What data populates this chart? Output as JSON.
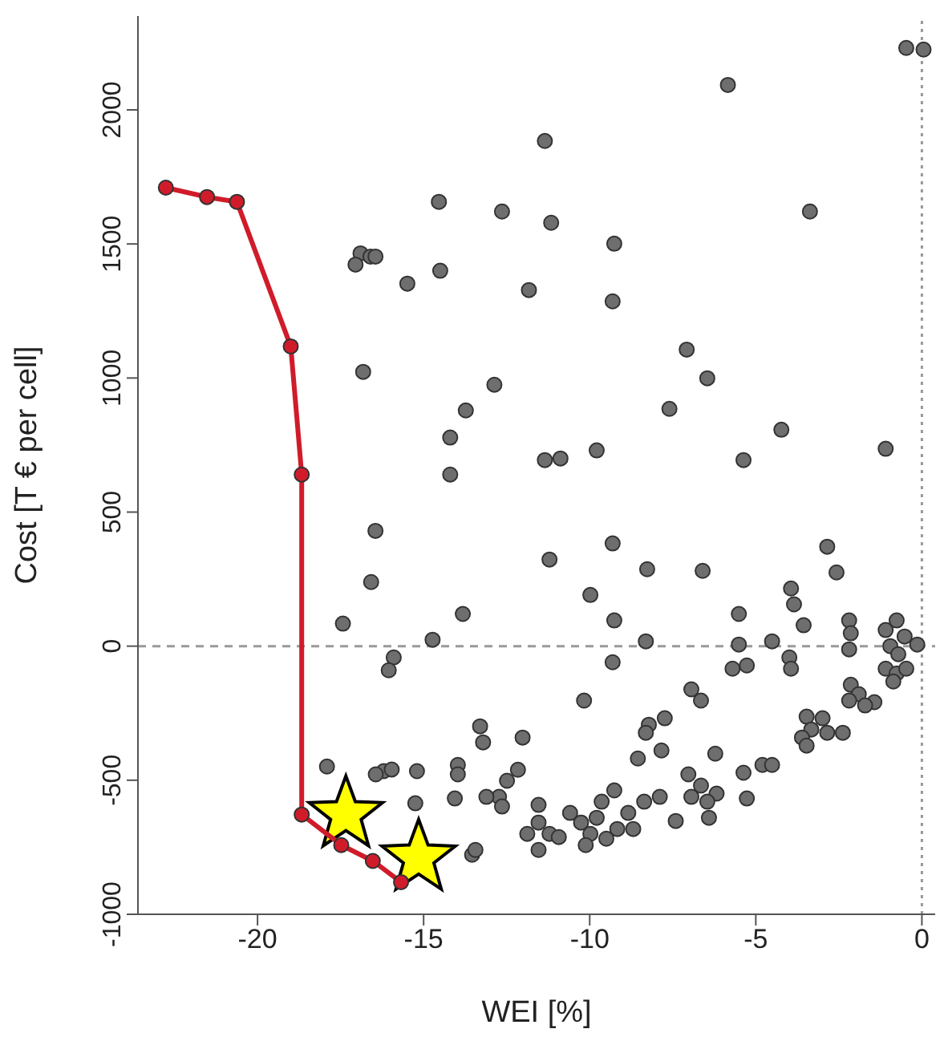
{
  "chart_data": {
    "type": "scatter",
    "xlabel": "WEI [%]",
    "ylabel": "Cost  [T € per cell]",
    "xlim": [
      -23.6,
      0.4
    ],
    "xticks": [
      -20,
      -15,
      -10,
      -5,
      0
    ],
    "ylim": [
      -1000,
      2350
    ],
    "yticks": [
      -1000,
      -500,
      0,
      500,
      1000,
      1500,
      2000
    ],
    "ref_lines": [
      {
        "axis": "y",
        "value": 0,
        "color": "#999999",
        "line_style": "dashed"
      },
      {
        "axis": "x",
        "value": 0,
        "color": "#999999",
        "line_style": "dotted"
      }
    ],
    "series": [
      {
        "marker": "circle",
        "color": "#6e6e6e",
        "x": [
          -0.47,
          0.05,
          -5.84,
          -11.35,
          -12.64,
          -11.16,
          -9.26,
          -11.83,
          -9.31,
          -7.08,
          -6.46,
          -7.6,
          -4.23,
          -5.37,
          -3.37,
          -1.09,
          -12.87,
          -13.73,
          -11.35,
          -10.88,
          -9.79,
          -14.54,
          -16.9,
          -16.6,
          -17.05,
          -16.45,
          -15.49,
          -14.5,
          -16.82,
          -14.2,
          -14.2,
          -16.45,
          -16.58,
          -17.43,
          -14.73,
          -13.82,
          -15.9,
          -16.05,
          -17.91,
          -16.2,
          -15.96,
          -16.44,
          -15.2,
          -15.25,
          -13.97,
          -13.97,
          -14.06,
          -13.54,
          -9.31,
          -11.21,
          -8.27,
          -6.6,
          -2.85,
          -2.57,
          -9.98,
          -9.26,
          -8.31,
          -9.31,
          -10.17,
          -5.51,
          -5.51,
          -5.7,
          -5.27,
          -4.51,
          -3.94,
          -3.85,
          -3.56,
          -3.99,
          -3.94,
          -2.19,
          -2.14,
          -2.19,
          -1.09,
          -0.76,
          -0.52,
          -0.14,
          -0.95,
          -0.71,
          -1.09,
          -0.76,
          -0.47,
          -0.86,
          -2.14,
          -1.9,
          -1.43,
          -1.71,
          -2.19,
          -3.47,
          -2.99,
          -3.33,
          -2.85,
          -2.38,
          -3.61,
          -3.47,
          -6.94,
          -6.65,
          -8.22,
          -7.74,
          -8.31,
          -7.84,
          -8.55,
          -6.22,
          -5.37,
          -4.8,
          -4.51,
          -7.03,
          -6.65,
          -6.18,
          -6.46,
          -6.94,
          -6.41,
          -7.41,
          -5.27,
          -7.89,
          -8.36,
          -8.84,
          -8.69,
          -9.17,
          -9.5,
          -9.26,
          -9.64,
          -9.79,
          -9.98,
          -10.12,
          -10.59,
          -10.26,
          -11.54,
          -11.54,
          -11.21,
          -11.54,
          -10.93,
          -11.88,
          -12.02,
          -12.16,
          -12.49,
          -12.73,
          -13.11,
          -12.64,
          -13.3,
          -13.21,
          -13.44
        ],
        "values": [
          2231,
          2225,
          2093,
          1884,
          1621,
          1579,
          1501,
          1328,
          1286,
          1106,
          999,
          885,
          807,
          694,
          1621,
          736,
          975,
          879,
          694,
          700,
          730,
          1657,
          1465,
          1453,
          1423,
          1453,
          1352,
          1400,
          1023,
          778,
          640,
          430,
          239,
          84,
          24,
          120,
          -42,
          -90,
          -449,
          -466,
          -460,
          -478,
          -466,
          -586,
          -443,
          -478,
          -568,
          -778,
          383,
          323,
          287,
          281,
          371,
          275,
          191,
          96,
          18,
          -60,
          -203,
          120,
          6,
          -84,
          -72,
          18,
          215,
          156,
          78,
          -42,
          -84,
          96,
          48,
          -12,
          60,
          96,
          36,
          6,
          0,
          -30,
          -84,
          -102,
          -84,
          -132,
          -144,
          -179,
          -209,
          -221,
          -203,
          -263,
          -269,
          -311,
          -323,
          -323,
          -341,
          -371,
          -161,
          -203,
          -293,
          -269,
          -323,
          -389,
          -419,
          -401,
          -472,
          -443,
          -443,
          -478,
          -520,
          -550,
          -580,
          -562,
          -640,
          -652,
          -568,
          -562,
          -580,
          -622,
          -682,
          -682,
          -718,
          -538,
          -580,
          -640,
          -700,
          -742,
          -622,
          -658,
          -592,
          -658,
          -700,
          -760,
          -712,
          -700,
          -341,
          -461,
          -502,
          -562,
          -562,
          -598,
          -299,
          -359,
          -760
        ]
      },
      {
        "type": "scatter",
        "marker": "star",
        "color": "#ffff00",
        "x": [
          -17.34,
          -15.15
        ],
        "values": [
          -628,
          -790
        ]
      },
      {
        "type": "line",
        "marker": "circle",
        "color": "#d01c2a",
        "x": [
          -22.76,
          -21.52,
          -20.62,
          -19.0,
          -18.67,
          -18.67,
          -17.48,
          -16.53,
          -15.68
        ],
        "values": [
          1710,
          1675,
          1657,
          1118,
          640,
          -628,
          -742,
          -801,
          -880
        ]
      }
    ]
  }
}
